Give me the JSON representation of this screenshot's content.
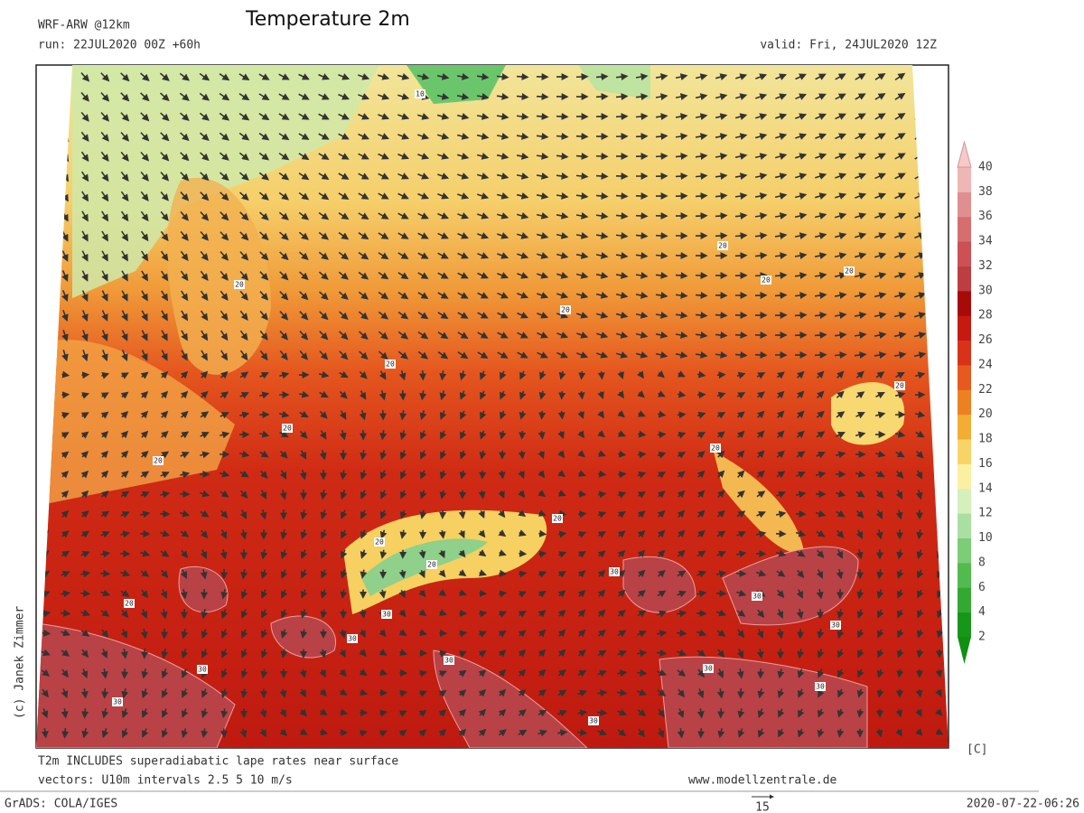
{
  "header": {
    "model": "WRF-ARW @12km",
    "title": "Temperature 2m",
    "run": "run: 22JUL2020 00Z +60h",
    "valid": "valid: Fri, 24JUL2020 12Z"
  },
  "credit": "(c) Janek Zimmer",
  "colorbar": {
    "unit": "[C]",
    "ticks": [
      "2",
      "4",
      "6",
      "8",
      "10",
      "12",
      "14",
      "16",
      "18",
      "20",
      "22",
      "24",
      "26",
      "28",
      "30",
      "32",
      "34",
      "36",
      "38",
      "40"
    ],
    "colors": [
      "#18961a",
      "#33a833",
      "#52ba4e",
      "#7dcc78",
      "#aadfa2",
      "#d6f0bc",
      "#fbf0a2",
      "#f8d468",
      "#f3ad35",
      "#ee8024",
      "#e65a1f",
      "#d83318",
      "#c61a10",
      "#a80a08",
      "#bd3e40",
      "#cc5054",
      "#d66e70",
      "#e08f90",
      "#efb6b6"
    ],
    "below_color": "#109010",
    "above_color": "#f7c9c9"
  },
  "contour_labels": [
    "10",
    "20",
    "20",
    "20",
    "20",
    "20",
    "20",
    "20",
    "20",
    "20",
    "20",
    "20",
    "20",
    "20",
    "20",
    "30",
    "30",
    "30",
    "30",
    "30",
    "30",
    "30",
    "30",
    "30",
    "30",
    "30"
  ],
  "footer": {
    "note1": "T2m INCLUDES superadiabatic lape rates near surface",
    "note2": "vectors: U10m intervals 2.5 5 10 m/s",
    "site": "www.modellzentrale.de",
    "grads": "GrADS: COLA/IGES",
    "vector_scale": "15",
    "timestamp": "2020-07-22-06:26"
  }
}
